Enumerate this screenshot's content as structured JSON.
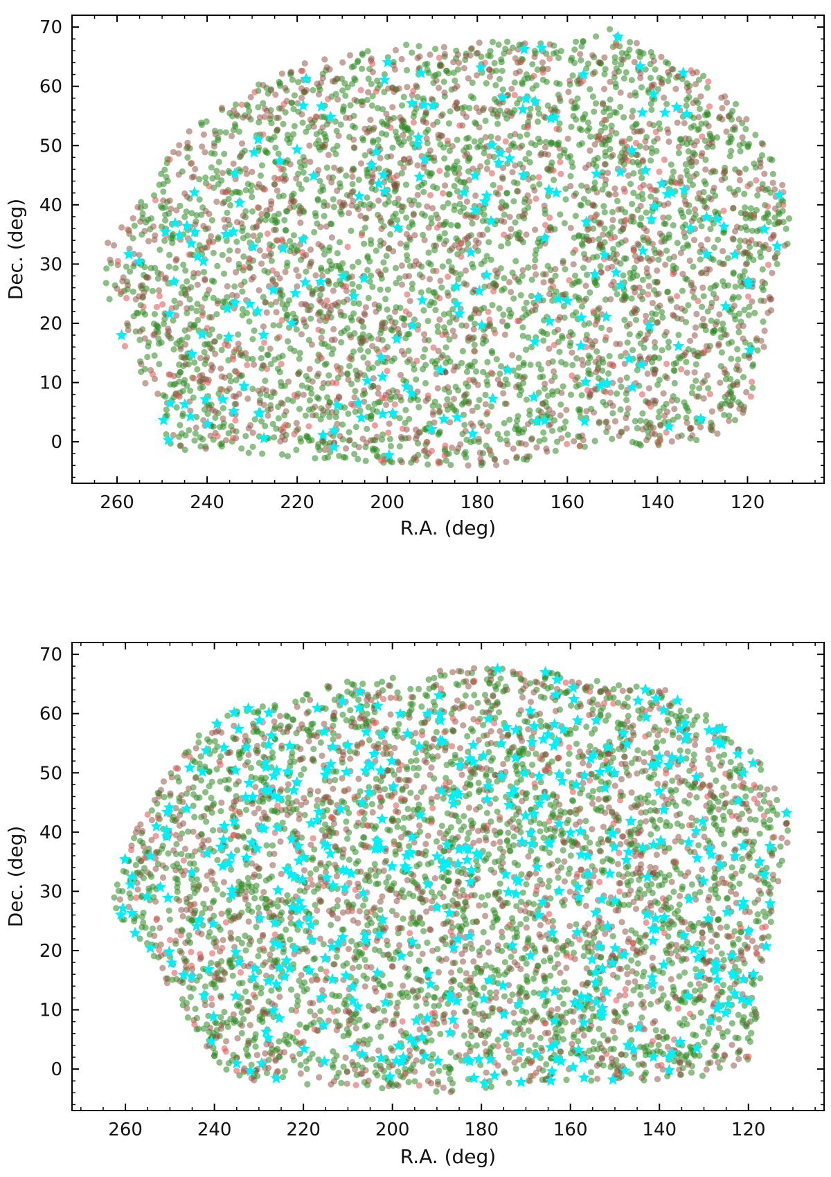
{
  "colors": {
    "green": "#2e8b22",
    "brown": "#8b4a3a",
    "red": "#e05050",
    "cyan": "#00f0f8",
    "axis": "#000000"
  },
  "chart_data": [
    {
      "type": "scatter",
      "title": "",
      "xlabel": "R.A. (deg)",
      "ylabel": "Dec. (deg)",
      "xlim": [
        270,
        103
      ],
      "ylim": [
        -7,
        72
      ],
      "x_inverted": true,
      "xticks": [
        260,
        240,
        220,
        200,
        180,
        160,
        140,
        120
      ],
      "yticks": [
        0,
        10,
        20,
        30,
        40,
        50,
        60,
        70
      ],
      "grid": false,
      "legend": "none",
      "footprint_outline": [
        [
          255,
          40
        ],
        [
          246,
          52
        ],
        [
          234,
          58
        ],
        [
          224,
          63
        ],
        [
          212,
          65
        ],
        [
          196,
          67
        ],
        [
          178,
          68
        ],
        [
          160,
          67
        ],
        [
          150,
          70
        ],
        [
          142,
          66
        ],
        [
          130,
          62
        ],
        [
          121,
          56
        ],
        [
          114,
          47
        ],
        [
          110,
          40
        ],
        [
          112,
          28
        ],
        [
          115,
          18
        ],
        [
          118,
          10
        ],
        [
          121,
          4
        ],
        [
          126,
          1
        ],
        [
          140,
          -1
        ],
        [
          160,
          -1
        ],
        [
          172,
          -4
        ],
        [
          195,
          -4
        ],
        [
          218,
          -3
        ],
        [
          236,
          -2
        ],
        [
          250,
          -1
        ],
        [
          250,
          6
        ],
        [
          256,
          12
        ],
        [
          261,
          20
        ],
        [
          263,
          28
        ],
        [
          262,
          34
        ]
      ],
      "series": [
        {
          "marker": "circle",
          "color": "#2e8b22",
          "count": 2600
        },
        {
          "marker": "circle",
          "color": "#8b4a3a",
          "count": 1300
        },
        {
          "marker": "circle",
          "color": "#e05050",
          "count": 220
        },
        {
          "marker": "star",
          "color": "#00f0f8",
          "count": 190
        }
      ]
    },
    {
      "type": "scatter",
      "title": "",
      "xlabel": "R.A. (deg)",
      "ylabel": "Dec. (deg)",
      "xlim": [
        272,
        103
      ],
      "ylim": [
        -7,
        72
      ],
      "x_inverted": true,
      "xticks": [
        260,
        240,
        220,
        200,
        180,
        160,
        140,
        120
      ],
      "yticks": [
        0,
        10,
        20,
        30,
        40,
        50,
        60,
        70
      ],
      "grid": false,
      "legend": "none",
      "footprint_outline": [
        [
          263,
          31
        ],
        [
          255,
          45
        ],
        [
          246,
          55
        ],
        [
          235,
          61
        ],
        [
          224,
          62
        ],
        [
          210,
          66
        ],
        [
          196,
          67
        ],
        [
          180,
          68
        ],
        [
          165,
          67
        ],
        [
          150,
          65
        ],
        [
          138,
          64
        ],
        [
          128,
          59
        ],
        [
          120,
          55
        ],
        [
          114,
          48
        ],
        [
          110,
          41
        ],
        [
          113,
          33
        ],
        [
          116,
          20
        ],
        [
          118,
          8
        ],
        [
          120,
          1
        ],
        [
          128,
          -1
        ],
        [
          142,
          -2
        ],
        [
          165,
          -2
        ],
        [
          188,
          -4
        ],
        [
          210,
          -3
        ],
        [
          232,
          -2
        ],
        [
          238,
          0
        ],
        [
          244,
          6
        ],
        [
          249,
          12
        ],
        [
          255,
          20
        ],
        [
          262,
          26
        ]
      ],
      "series": [
        {
          "marker": "circle",
          "color": "#2e8b22",
          "count": 2700
        },
        {
          "marker": "circle",
          "color": "#8b4a3a",
          "count": 1300
        },
        {
          "marker": "circle",
          "color": "#e05050",
          "count": 220
        },
        {
          "marker": "star",
          "color": "#00f0f8",
          "count": 480
        }
      ]
    }
  ]
}
